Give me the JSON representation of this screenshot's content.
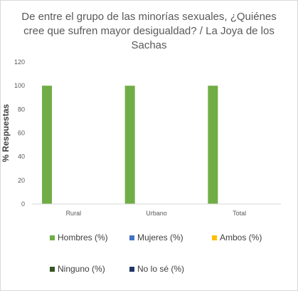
{
  "chart_data": {
    "type": "bar",
    "title": "De entre el grupo de las minorías sexuales, ¿Quiénes cree que sufren mayor desigualdad? / La Joya de los Sachas",
    "xlabel": "",
    "ylabel": "% Respuestas",
    "ylim": [
      0,
      120
    ],
    "yticks": [
      0,
      20,
      40,
      60,
      80,
      100,
      120
    ],
    "categories": [
      "Rural",
      "Urbano",
      "Total"
    ],
    "series": [
      {
        "name": "Hombres (%)",
        "color": "#70ad47",
        "values": [
          100,
          100,
          100
        ]
      },
      {
        "name": "Mujeres (%)",
        "color": "#4472c4",
        "values": [
          0,
          0,
          0
        ]
      },
      {
        "name": "Ambos (%)",
        "color": "#ffc000",
        "values": [
          0,
          0,
          0
        ]
      },
      {
        "name": "Ninguno (%)",
        "color": "#375623",
        "values": [
          0,
          0,
          0
        ]
      },
      {
        "name": "No lo sé (%)",
        "color": "#1f3864",
        "values": [
          0,
          0,
          0
        ]
      }
    ],
    "grid": false,
    "legend": "bottom"
  }
}
